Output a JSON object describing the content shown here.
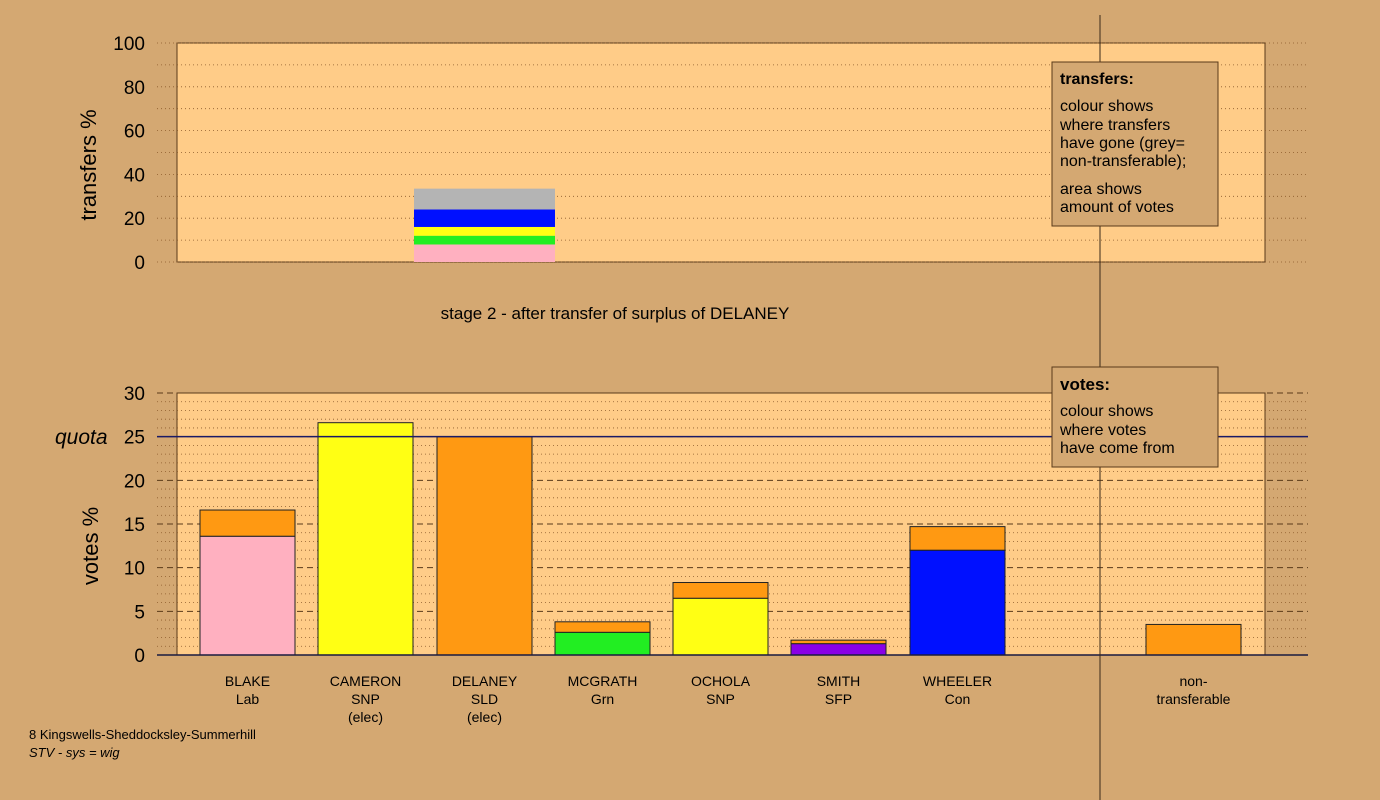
{
  "colors": {
    "background": "#d4a872",
    "plot_area": "#ffcc88",
    "grid": "#8b5a2b",
    "quota_line": "#1a1a66",
    "pink": "#ffb0c0",
    "yellow": "#ffff14",
    "orange": "#ff9912",
    "green": "#22ee22",
    "blue": "#0010ff",
    "purple": "#8a00e6",
    "grey": "#b4b4b4"
  },
  "footer": {
    "ward": "8 Kingswells-Sheddocksley-Summerhill",
    "system": "STV - sys = wig"
  },
  "stage_title": "stage 2 - after transfer of surplus of DELANEY",
  "legends": {
    "transfers": {
      "title": "transfers:",
      "line1": "colour shows",
      "line2": "where transfers",
      "line3": "have gone (grey=",
      "line4": "non-transferable);",
      "line5": "area shows",
      "line6": "amount of votes"
    },
    "votes": {
      "title": "votes:",
      "line1": "colour shows",
      "line2": "where votes",
      "line3": "have come from"
    }
  },
  "chart_data": [
    {
      "type": "bar",
      "name": "transfers",
      "ylabel": "transfers %",
      "ylim": [
        0,
        100
      ],
      "yticks": [
        0,
        20,
        40,
        60,
        80,
        100
      ],
      "grid": true,
      "legend": "top-right",
      "bars": [
        {
          "position": 3,
          "segments": [
            {
              "color": "pink",
              "value": 8
            },
            {
              "color": "green",
              "value": 4
            },
            {
              "color": "yellow",
              "value": 4
            },
            {
              "color": "blue",
              "value": 8
            },
            {
              "color": "grey",
              "value": 9.5
            }
          ]
        }
      ]
    },
    {
      "type": "bar",
      "name": "votes",
      "ylabel": "votes %",
      "ylim": [
        0,
        30
      ],
      "yticks": [
        0,
        5,
        10,
        15,
        20,
        25,
        30
      ],
      "quota": 25,
      "quota_label": "quota",
      "grid": true,
      "legend": "top-right",
      "categories": [
        {
          "name": "BLAKE",
          "party": "Lab",
          "note": ""
        },
        {
          "name": "CAMERON",
          "party": "SNP",
          "note": "(elec)"
        },
        {
          "name": "DELANEY",
          "party": "SLD",
          "note": "(elec)"
        },
        {
          "name": "MCGRATH",
          "party": "Grn",
          "note": ""
        },
        {
          "name": "OCHOLA",
          "party": "SNP",
          "note": ""
        },
        {
          "name": "SMITH",
          "party": "SFP",
          "note": ""
        },
        {
          "name": "WHEELER",
          "party": "Con",
          "note": ""
        },
        {
          "name": "non-",
          "party": "transferable",
          "note": ""
        }
      ],
      "series": [
        {
          "role": "first preferences",
          "values": [
            13.6,
            26.6,
            25.0,
            2.6,
            6.5,
            1.3,
            12.0,
            0
          ],
          "colors": [
            "pink",
            "yellow",
            "orange",
            "green",
            "yellow",
            "purple",
            "blue",
            "orange"
          ]
        },
        {
          "role": "transfer from DELANEY",
          "values": [
            3.0,
            0,
            0,
            1.2,
            1.8,
            0.4,
            2.7,
            3.5
          ],
          "colors": [
            "orange",
            "orange",
            "orange",
            "orange",
            "orange",
            "orange",
            "orange",
            "orange"
          ]
        }
      ]
    }
  ]
}
